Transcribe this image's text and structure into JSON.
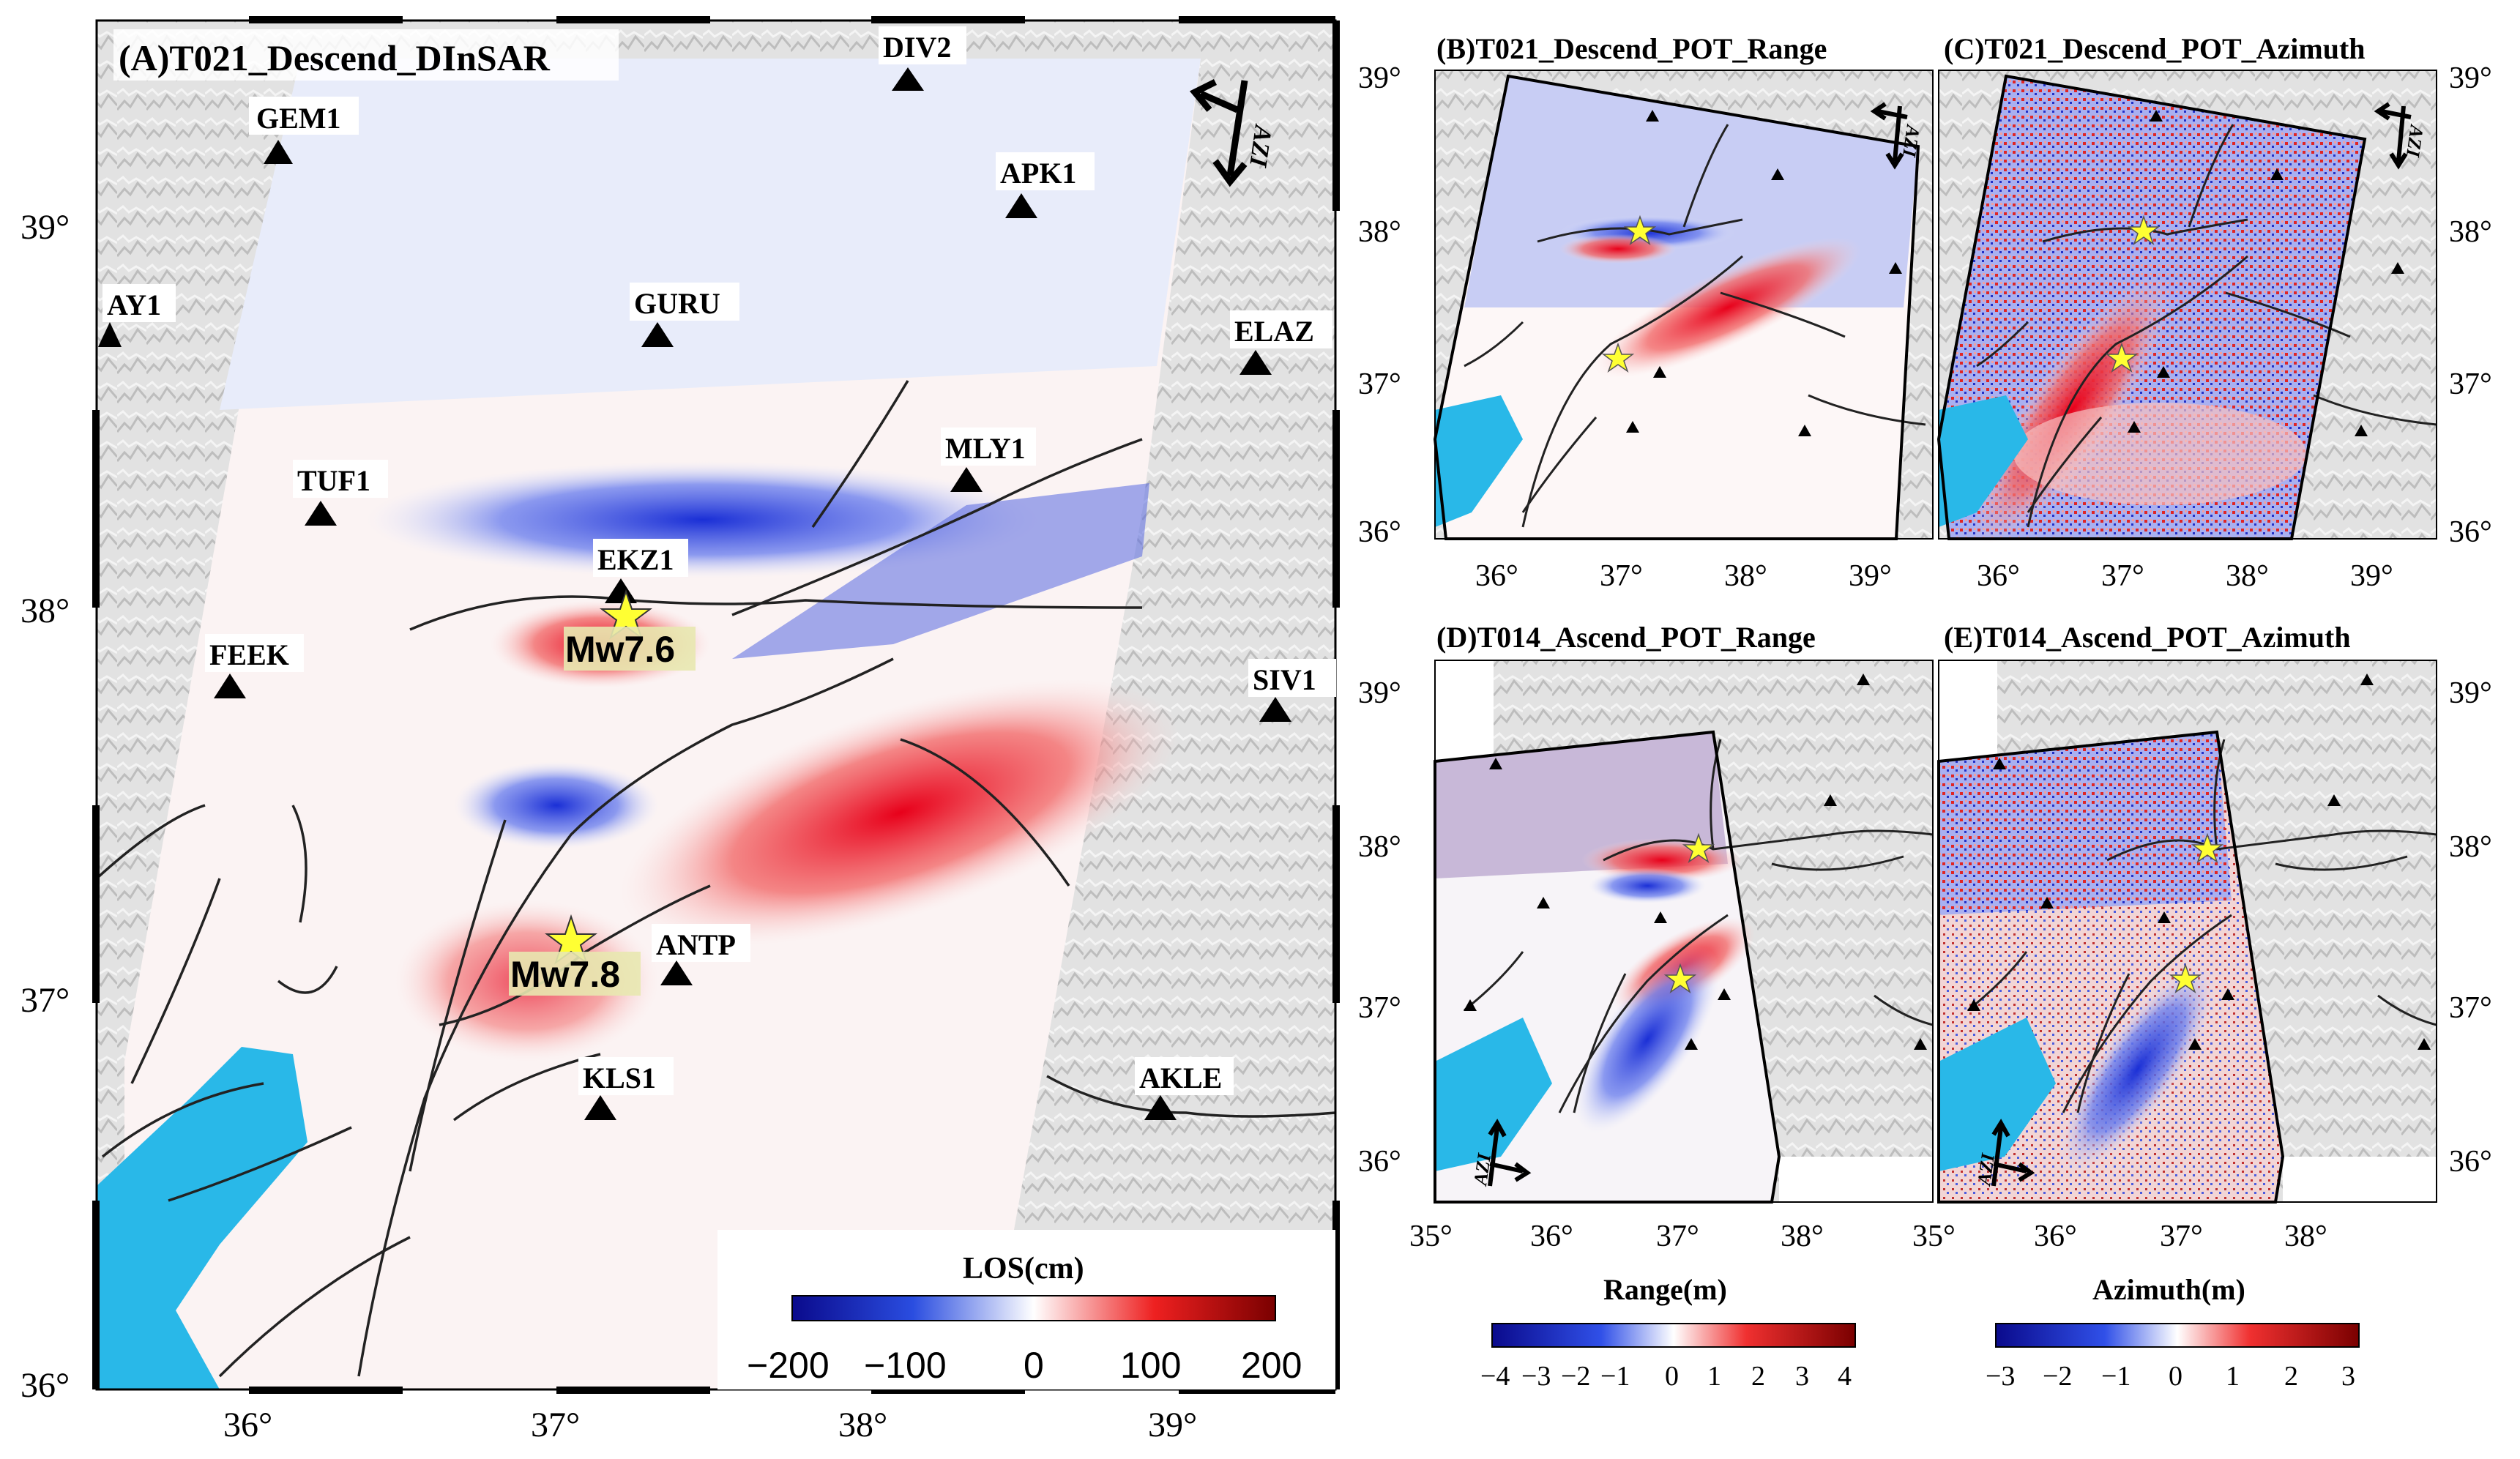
{
  "panels": {
    "A": {
      "title": "(A)T021_Descend_DInSAR",
      "lon_ticks": [
        "36°",
        "37°",
        "38°",
        "39°"
      ],
      "lat_ticks": [
        "36°",
        "37°",
        "38°",
        "39°"
      ],
      "stations": [
        "GEM1",
        "DIV2",
        "APK1",
        "AY1",
        "GURU",
        "ELAZ",
        "TUF1",
        "MLY1",
        "EKZ1",
        "FEEK",
        "SIV1",
        "ANTP",
        "KLS1",
        "AKLE"
      ],
      "epicenters": [
        "Mw7.6",
        "Mw7.8"
      ],
      "azi": "AZI",
      "colorbar": {
        "title": "LOS(cm)",
        "ticks": [
          "−200",
          "−100",
          "0",
          "100",
          "200"
        ]
      }
    },
    "B": {
      "title": "(B)T021_Descend_POT_Range",
      "lon_ticks": [
        "36°",
        "37°",
        "38°",
        "39°"
      ],
      "lat_ticks": [
        "36°",
        "37°",
        "38°",
        "39°"
      ],
      "azi": "AZI"
    },
    "C": {
      "title": "(C)T021_Descend_POT_Azimuth",
      "lon_ticks": [
        "36°",
        "37°",
        "38°",
        "39°"
      ],
      "lat_ticks": [
        "36°",
        "37°",
        "38°",
        "39°"
      ],
      "azi": "AZI"
    },
    "D": {
      "title": "(D)T014_Ascend_POT_Range",
      "lon_ticks": [
        "35°",
        "36°",
        "37°",
        "38°"
      ],
      "lat_ticks": [
        "36°",
        "37°",
        "38°",
        "39°"
      ],
      "azi": "AZI"
    },
    "E": {
      "title": "(E)T014_Ascend_POT_Azimuth",
      "lon_ticks": [
        "35°",
        "36°",
        "37°",
        "38°"
      ],
      "lat_ticks": [
        "36°",
        "37°",
        "38°",
        "39°"
      ],
      "azi": "AZI"
    }
  },
  "colorbars": {
    "range": {
      "title": "Range(m)",
      "ticks": [
        "−4",
        "−3",
        "−2",
        "−1",
        "0",
        "1",
        "2",
        "3",
        "4"
      ]
    },
    "azimuth": {
      "title": "Azimuth(m)",
      "ticks": [
        "−3",
        "−2",
        "−1",
        "0",
        "1",
        "2",
        "3"
      ]
    }
  },
  "colors": {
    "water": "#29b8e8",
    "positive": "#e0001b",
    "negative": "#1a2fd6",
    "star": "#ffff33"
  }
}
